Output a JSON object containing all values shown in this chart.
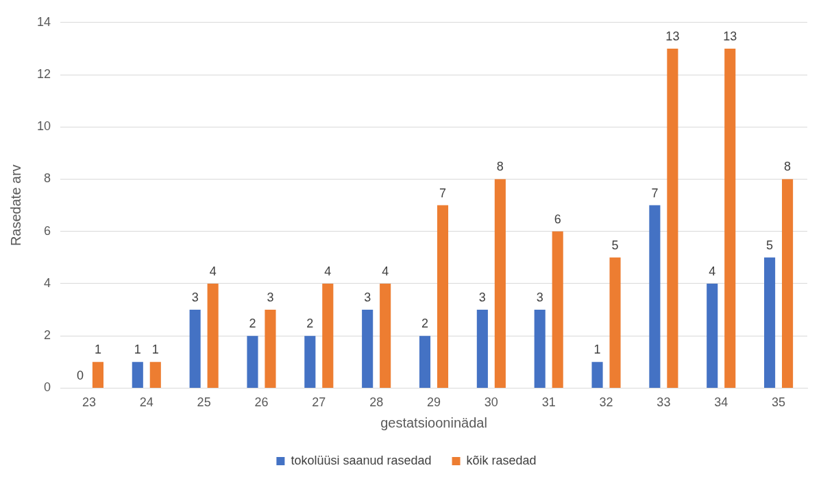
{
  "chart_data": {
    "type": "bar",
    "xlabel": "gestatsiooninädal",
    "ylabel": "Rasedate arv",
    "categories": [
      "23",
      "24",
      "25",
      "26",
      "27",
      "28",
      "29",
      "30",
      "31",
      "32",
      "33",
      "34",
      "35"
    ],
    "series": [
      {
        "name": "tokolüüsi saanud rasedad",
        "color": "#4472c4",
        "values": [
          0,
          1,
          3,
          2,
          2,
          3,
          2,
          3,
          3,
          1,
          7,
          4,
          5
        ]
      },
      {
        "name": "kõik rasedad",
        "color": "#ed7d31",
        "values": [
          1,
          1,
          4,
          3,
          4,
          4,
          7,
          8,
          6,
          5,
          13,
          13,
          8
        ]
      }
    ],
    "ylim": [
      0,
      14
    ],
    "yticks": [
      0,
      2,
      4,
      6,
      8,
      10,
      12,
      14
    ],
    "grid": "y",
    "legend": "bottom",
    "data_labels": true
  }
}
